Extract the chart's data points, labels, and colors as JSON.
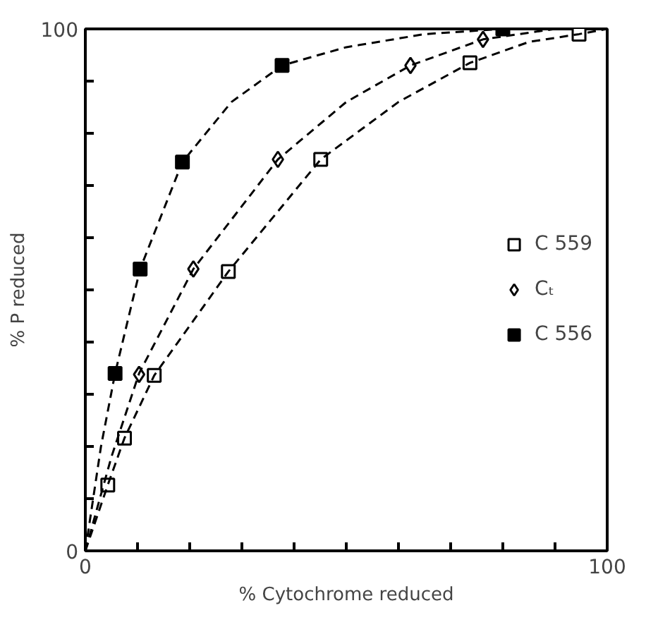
{
  "chart_data": {
    "type": "scatter",
    "xlabel": "% Cytochrome reduced",
    "ylabel": "% P reduced",
    "xlim": [
      0,
      100
    ],
    "ylim": [
      0,
      100
    ],
    "xticks": [
      0,
      {
        "value": 10,
        "label": null
      },
      {
        "value": 20,
        "label": null
      },
      {
        "value": 30,
        "label": null
      },
      {
        "value": 40,
        "label": null
      },
      {
        "value": 50,
        "label": null
      },
      {
        "value": 60,
        "label": null
      },
      {
        "value": 70,
        "label": null
      },
      {
        "value": 80,
        "label": null
      },
      {
        "value": 90,
        "label": null
      },
      100
    ],
    "yticks": [
      0,
      {
        "value": 10,
        "label": null
      },
      {
        "value": 20,
        "label": null
      },
      {
        "value": 30,
        "label": null
      },
      {
        "value": 40,
        "label": null
      },
      {
        "value": 50,
        "label": null
      },
      {
        "value": 60,
        "label": null
      },
      {
        "value": 70,
        "label": null
      },
      {
        "value": 80,
        "label": null
      },
      {
        "value": 90,
        "label": null
      },
      100
    ],
    "grid": false,
    "legend": "right",
    "series": [
      {
        "name": "C 559",
        "color": "#000000",
        "marker": "square_open",
        "x": [
          4.3,
          7.5,
          13.2,
          27.4,
          45.1,
          73.7,
          94.6
        ],
        "values": [
          12.6,
          21.6,
          33.6,
          53.5,
          75,
          93.5,
          99
        ]
      },
      {
        "name": "Cₜ",
        "color": "#000000",
        "marker": "diamond_open",
        "x": [
          10.3,
          20.7,
          36.9,
          62.3,
          76.2
        ],
        "values": [
          33.8,
          54,
          75,
          93,
          98
        ]
      },
      {
        "name": "C 556",
        "color": "#000000",
        "marker": "square",
        "x": [
          5.7,
          10.5,
          18.6,
          37.7,
          80
        ],
        "values": [
          34,
          54,
          74.5,
          93,
          100
        ]
      },
      {
        "type": "line",
        "line_style": "dashed",
        "color": "#000000",
        "x": [
          0,
          3,
          5.7,
          10.5,
          18.6,
          28,
          37.7,
          50,
          65,
          80
        ],
        "values": [
          0,
          20,
          34,
          54,
          74.5,
          86,
          93,
          96.5,
          99,
          100
        ]
      },
      {
        "type": "line",
        "line_style": "dashed",
        "color": "#000000",
        "x": [
          0,
          5,
          10.3,
          20.7,
          36.9,
          50,
          62.3,
          76.2,
          90
        ],
        "values": [
          0,
          18,
          34,
          54,
          75,
          86,
          93,
          98,
          100
        ]
      },
      {
        "type": "line",
        "line_style": "dashed",
        "color": "#000000",
        "x": [
          0,
          4.3,
          7.5,
          13.2,
          27.4,
          45.1,
          60,
          73.7,
          85,
          94.6,
          100
        ],
        "values": [
          0,
          12.6,
          21.6,
          33.6,
          53.5,
          75,
          86,
          93.5,
          97.5,
          99,
          100
        ]
      }
    ]
  }
}
